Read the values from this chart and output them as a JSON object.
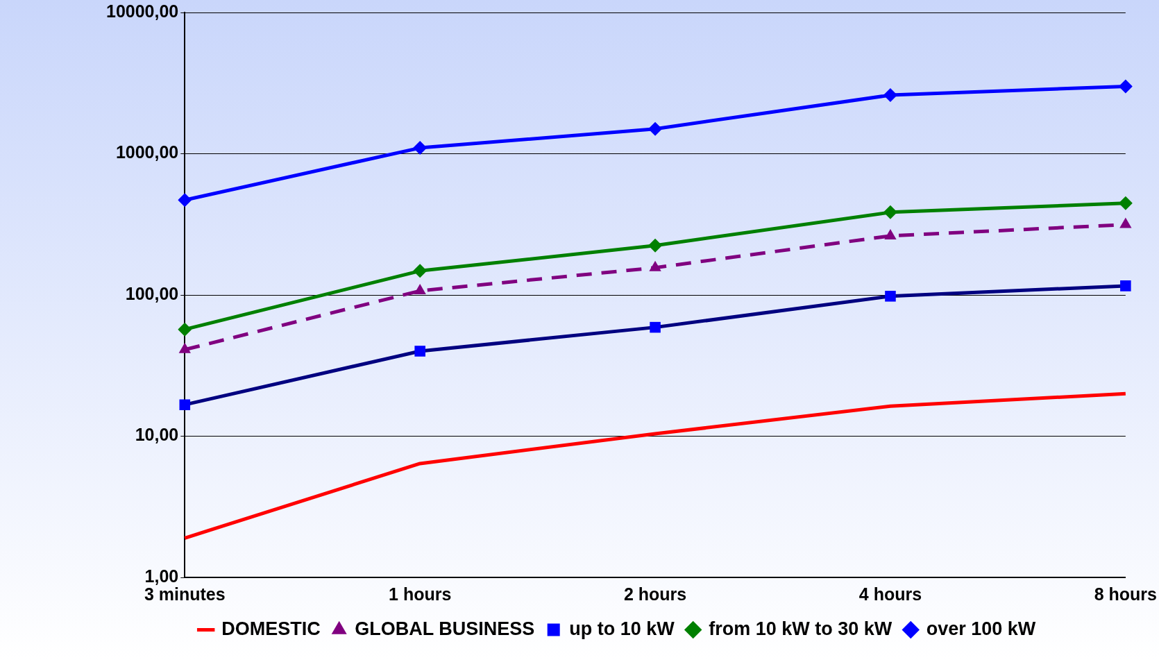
{
  "chart_data": {
    "type": "line",
    "categories": [
      "3 minutes",
      "1 hours",
      "2 hours",
      "4 hours",
      "8 hours"
    ],
    "series": [
      {
        "name": "DOMESTIC",
        "color": "#ff0000",
        "marker": "none",
        "line_style": "solid",
        "values": [
          1.9,
          6.4,
          10.4,
          16.3,
          20
        ]
      },
      {
        "name": "GLOBAL BUSINESS",
        "color": "#800080",
        "marker": "triangle",
        "line_style": "dashed",
        "values": [
          41,
          107,
          156,
          262,
          315
        ]
      },
      {
        "name": "up to 10 kW",
        "color": "#000080",
        "marker": "square",
        "line_style": "solid",
        "values": [
          16.7,
          40,
          59,
          98,
          116
        ]
      },
      {
        "name": "from 10 kW to 30 kW",
        "color": "#008000",
        "marker": "diamond",
        "line_style": "solid",
        "values": [
          57,
          148,
          224,
          385,
          447
        ]
      },
      {
        "name": "over 100 kW",
        "color": "#0000ff",
        "marker": "diamond",
        "line_style": "solid",
        "values": [
          470,
          1100,
          1500,
          2600,
          3000
        ]
      }
    ],
    "log": "y",
    "ylim": [
      1,
      10000
    ],
    "yticks": [
      {
        "value": 1,
        "label": "1,00"
      },
      {
        "value": 10,
        "label": "10,00"
      },
      {
        "value": 100,
        "label": "100,00"
      },
      {
        "value": 1000,
        "label": "1000,00"
      },
      {
        "value": 10000,
        "label": "10000,00"
      }
    ],
    "grid": "y",
    "legend": "bottom"
  }
}
